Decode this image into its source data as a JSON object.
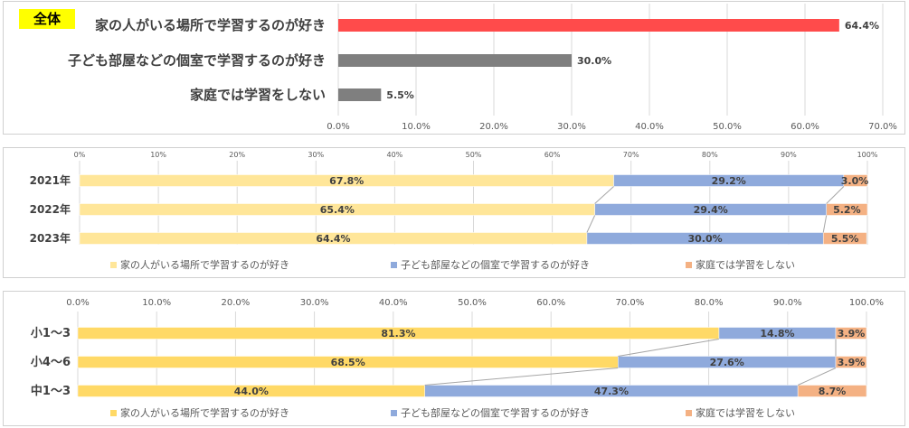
{
  "chart_data": [
    {
      "type": "bar",
      "orientation": "horizontal",
      "badge": "全体",
      "categories": [
        "家の人がいる場所で学習するのが好き",
        "子ども部屋などの個室で学習するのが好き",
        "家庭では学習をしない"
      ],
      "values": [
        64.4,
        30.0,
        5.5
      ],
      "value_labels": [
        "64.4%",
        "30.0%",
        "5.5%"
      ],
      "colors": [
        "#ff4b4b",
        "#7f7f7f",
        "#7f7f7f"
      ],
      "xlim": [
        0,
        70
      ],
      "ticks": [
        "0.0%",
        "10.0%",
        "20.0%",
        "30.0%",
        "40.0%",
        "50.0%",
        "60.0%",
        "70.0%"
      ],
      "grid": true
    },
    {
      "type": "bar",
      "orientation": "horizontal",
      "stacked": true,
      "percent": true,
      "categories": [
        "2021年",
        "2022年",
        "2023年"
      ],
      "series": [
        {
          "name": "家の人がいる場所で学習するのが好き",
          "color": "#ffe699",
          "values": [
            67.8,
            65.4,
            64.4
          ],
          "labels": [
            "67.8%",
            "65.4%",
            "64.4%"
          ]
        },
        {
          "name": "子ども部屋などの個室で学習するのが好き",
          "color": "#8faadc",
          "values": [
            29.2,
            29.4,
            30.0
          ],
          "labels": [
            "29.2%",
            "29.4%",
            "30.0%"
          ]
        },
        {
          "name": "家庭では学習をしない",
          "color": "#f4b183",
          "values": [
            3.0,
            5.2,
            5.5
          ],
          "labels": [
            "3.0%",
            "5.2%",
            "5.5%"
          ]
        }
      ],
      "xlim": [
        0,
        100
      ],
      "ticks": [
        "0%",
        "10%",
        "20%",
        "30%",
        "40%",
        "50%",
        "60%",
        "70%",
        "80%",
        "90%",
        "100%"
      ],
      "legend": "bottom",
      "grid": true
    },
    {
      "type": "bar",
      "orientation": "horizontal",
      "stacked": true,
      "percent": true,
      "categories": [
        "小1～3",
        "小4～6",
        "中1～3"
      ],
      "series": [
        {
          "name": "家の人がいる場所で学習するのが好き",
          "color": "#ffd966",
          "values": [
            81.3,
            68.5,
            44.0
          ],
          "labels": [
            "81.3%",
            "68.5%",
            "44.0%"
          ]
        },
        {
          "name": "子ども部屋などの個室で学習するのが好き",
          "color": "#8faadc",
          "values": [
            14.8,
            27.6,
            47.3
          ],
          "labels": [
            "14.8%",
            "27.6%",
            "47.3%"
          ]
        },
        {
          "name": "家庭では学習をしない",
          "color": "#f4b183",
          "values": [
            3.9,
            3.9,
            8.7
          ],
          "labels": [
            "3.9%",
            "3.9%",
            "8.7%"
          ]
        }
      ],
      "xlim": [
        0,
        100
      ],
      "ticks": [
        "0.0%",
        "10.0%",
        "20.0%",
        "30.0%",
        "40.0%",
        "50.0%",
        "60.0%",
        "70.0%",
        "80.0%",
        "90.0%",
        "100.0%"
      ],
      "legend": "bottom",
      "grid": true
    }
  ]
}
